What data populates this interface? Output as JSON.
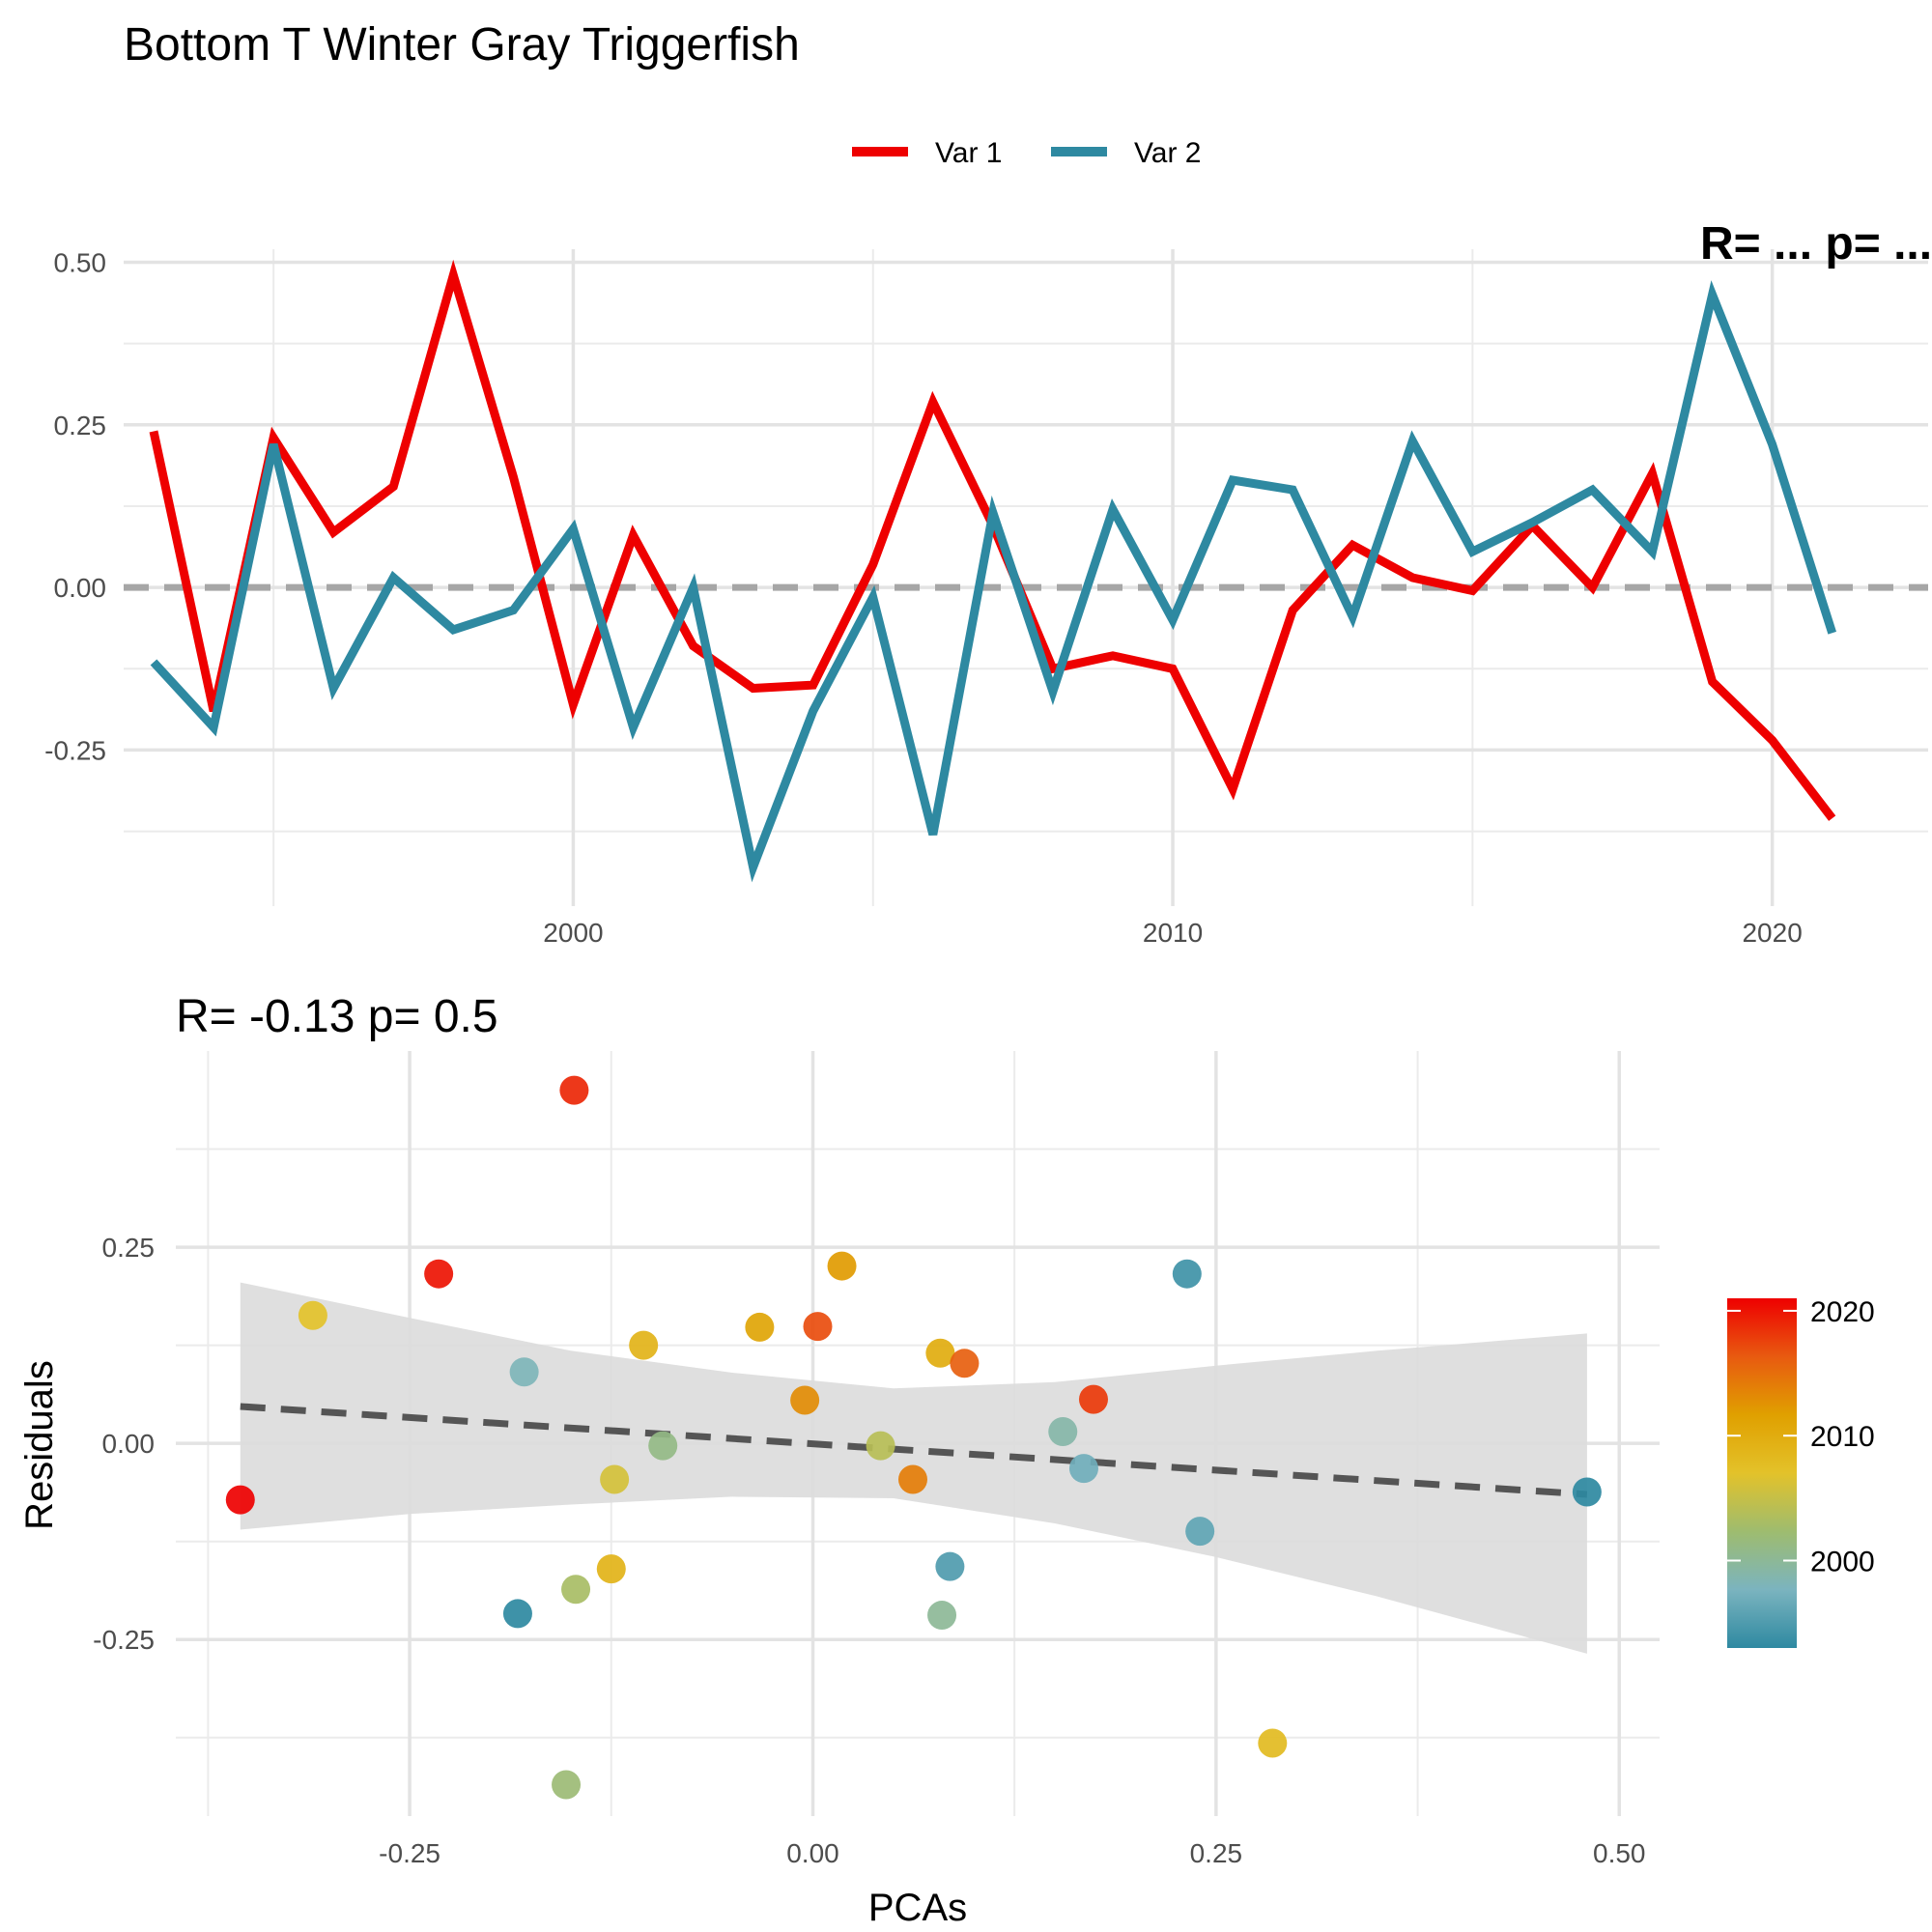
{
  "figure_title": "Bottom T Winter Gray Triggerfish",
  "chart_data": [
    {
      "type": "line",
      "title": "Bottom T Winter Gray Triggerfish",
      "xlabel": "",
      "ylabel": "",
      "xlim": [
        1992.5,
        2022.6
      ],
      "ylim": [
        -0.49,
        0.52
      ],
      "x_ticks": [
        2000,
        2010,
        2020
      ],
      "y_ticks": [
        0.5,
        0.25,
        0.0,
        -0.25
      ],
      "y_tick_labels": [
        "0.50",
        "0.25",
        "0.00",
        "-0.25"
      ],
      "x_tick_labels": [
        "2000",
        "2010",
        "2020"
      ],
      "reference_line_y": 0,
      "reference_line_style": "dashed grey",
      "grid": true,
      "legend_position": "top",
      "clipped_annotation": "R= ... p= ...",
      "x": [
        1993,
        1994,
        1995,
        1996,
        1997,
        1998,
        1999,
        2000,
        2001,
        2002,
        2003,
        2004,
        2005,
        2006,
        2007,
        2008,
        2009,
        2010,
        2011,
        2012,
        2013,
        2014,
        2015,
        2016,
        2017,
        2018,
        2019,
        2020,
        2021
      ],
      "series": [
        {
          "name": "Var 1",
          "color": "#EE0000",
          "values": [
            0.24,
            -0.19,
            0.23,
            0.085,
            0.155,
            0.48,
            0.17,
            -0.18,
            0.08,
            -0.09,
            -0.155,
            -0.15,
            0.035,
            0.285,
            0.095,
            -0.125,
            -0.105,
            -0.125,
            -0.31,
            -0.035,
            0.065,
            0.015,
            -0.005,
            0.095,
            0.0,
            0.175,
            -0.145,
            -0.235,
            -0.355
          ]
        },
        {
          "name": "Var 2",
          "color": "#2E89A1",
          "values": [
            -0.115,
            -0.215,
            0.22,
            -0.155,
            0.015,
            -0.065,
            -0.035,
            0.09,
            -0.215,
            0.0,
            -0.43,
            -0.19,
            -0.015,
            -0.38,
            0.115,
            -0.16,
            0.12,
            -0.05,
            0.165,
            0.15,
            -0.045,
            0.225,
            0.055,
            0.1,
            0.15,
            0.055,
            0.45,
            0.22,
            -0.07
          ]
        }
      ]
    },
    {
      "type": "scatter",
      "title": "R= -0.13  p= 0.5",
      "xlabel": "PCAs",
      "ylabel": "Residuals",
      "xlim": [
        -0.395,
        0.525
      ],
      "ylim": [
        -0.475,
        0.5
      ],
      "x_ticks": [
        -0.25,
        0.0,
        0.25,
        0.5
      ],
      "x_tick_labels": [
        "-0.25",
        "0.00",
        "0.25",
        "0.50"
      ],
      "y_ticks": [
        0.25,
        0.0,
        -0.25
      ],
      "y_tick_labels": [
        "0.25",
        "0.00",
        "-0.25"
      ],
      "grid": true,
      "regression": {
        "x0": -0.355,
        "y0": 0.047,
        "x1": 0.48,
        "y1": -0.065,
        "style": "dashed",
        "color": "#555555"
      },
      "confidence_band": {
        "x": [
          -0.355,
          -0.25,
          -0.15,
          -0.05,
          0.05,
          0.15,
          0.25,
          0.35,
          0.48
        ],
        "upper": [
          0.205,
          0.16,
          0.118,
          0.09,
          0.07,
          0.078,
          0.099,
          0.118,
          0.14
        ],
        "lower": [
          -0.11,
          -0.09,
          -0.078,
          -0.068,
          -0.07,
          -0.102,
          -0.145,
          -0.195,
          -0.268
        ],
        "color": "#DCDCDC"
      },
      "colorbar": {
        "title": "",
        "ticks": [
          2000,
          2010,
          2020
        ],
        "range": [
          1993,
          2021
        ],
        "stops": [
          "#2E89A1",
          "#7BB4BF",
          "#9EBC6F",
          "#E3C22A",
          "#E0A000",
          "#E85A10",
          "#EE0000"
        ]
      },
      "points": [
        {
          "x": -0.355,
          "y": -0.072,
          "year": 2021
        },
        {
          "x": -0.31,
          "y": 0.163,
          "year": 2007
        },
        {
          "x": -0.232,
          "y": 0.216,
          "year": 2020
        },
        {
          "x": -0.183,
          "y": -0.217,
          "year": 1993
        },
        {
          "x": -0.179,
          "y": 0.091,
          "year": 1998
        },
        {
          "x": -0.148,
          "y": 0.45,
          "year": 2019
        },
        {
          "x": -0.147,
          "y": -0.186,
          "year": 2003
        },
        {
          "x": -0.153,
          "y": -0.435,
          "year": 2002
        },
        {
          "x": -0.125,
          "y": -0.16,
          "year": 2009
        },
        {
          "x": -0.123,
          "y": -0.046,
          "year": 2006
        },
        {
          "x": -0.105,
          "y": 0.125,
          "year": 2009
        },
        {
          "x": -0.093,
          "y": -0.003,
          "year": 2001
        },
        {
          "x": -0.033,
          "y": 0.148,
          "year": 2011
        },
        {
          "x": -0.005,
          "y": 0.055,
          "year": 2013
        },
        {
          "x": 0.003,
          "y": 0.149,
          "year": 2017
        },
        {
          "x": 0.018,
          "y": 0.226,
          "year": 2012
        },
        {
          "x": 0.042,
          "y": -0.003,
          "year": 2004
        },
        {
          "x": 0.062,
          "y": -0.046,
          "year": 2014
        },
        {
          "x": 0.079,
          "y": 0.115,
          "year": 2010
        },
        {
          "x": 0.094,
          "y": 0.102,
          "year": 2016
        },
        {
          "x": 0.08,
          "y": -0.219,
          "year": 2000
        },
        {
          "x": 0.085,
          "y": -0.157,
          "year": 1995
        },
        {
          "x": 0.155,
          "y": 0.015,
          "year": 1999
        },
        {
          "x": 0.168,
          "y": -0.032,
          "year": 1997
        },
        {
          "x": 0.174,
          "y": 0.056,
          "year": 2018
        },
        {
          "x": 0.232,
          "y": 0.216,
          "year": 1994
        },
        {
          "x": 0.24,
          "y": -0.112,
          "year": 1996
        },
        {
          "x": 0.285,
          "y": -0.382,
          "year": 2008
        },
        {
          "x": 0.48,
          "y": -0.062,
          "year": 1993
        }
      ]
    }
  ]
}
